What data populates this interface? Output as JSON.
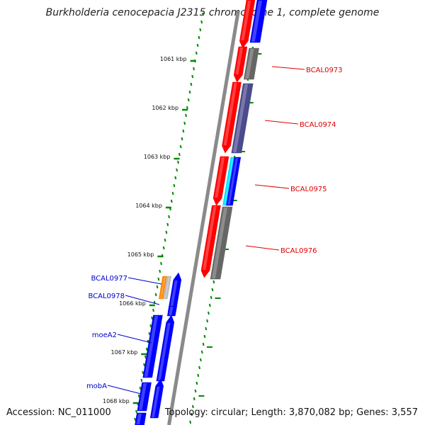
{
  "title": "Burkholderia cenocepacia J2315 chromosome 1, complete genome",
  "accession": "Accession: NC_011000",
  "summary": "Topology: circular; Length: 3,870,082 bp; Genes: 3,557",
  "ticks": [
    {
      "label": "1061 kbp",
      "kbp": 1061
    },
    {
      "label": "1062 kbp",
      "kbp": 1062
    },
    {
      "label": "1063 kbp",
      "kbp": 1063
    },
    {
      "label": "1064 kbp",
      "kbp": 1064
    },
    {
      "label": "1065 kbp",
      "kbp": 1065
    },
    {
      "label": "1066 kbp",
      "kbp": 1066
    },
    {
      "label": "1067 kbp",
      "kbp": 1067
    },
    {
      "label": "1068 kbp",
      "kbp": 1068
    }
  ],
  "gene_labels_right": [
    {
      "name": "BCAL0973",
      "color": "#dd0000"
    },
    {
      "name": "BCAL0974",
      "color": "#dd0000"
    },
    {
      "name": "BCAL0975",
      "color": "#dd0000"
    },
    {
      "name": "BCAL0976",
      "color": "#dd0000"
    }
  ],
  "gene_labels_left": [
    {
      "name": "BCAL0977",
      "color": "#0000cc"
    },
    {
      "name": "BCAL0978",
      "color": "#0000cc"
    },
    {
      "name": "moeA2",
      "color": "#0000cc"
    },
    {
      "name": "mobA",
      "color": "#0000cc"
    }
  ],
  "colors": {
    "reverse_strand": "#ff0000",
    "forward_strand": "#0000ff",
    "cds_gray": "#666666",
    "cds_purple": "#4a4a8c",
    "cds_cyan": "#00e5ff",
    "cds_orange": "#ff8800",
    "backbone": "#8a8a8a",
    "tick": "#008800"
  }
}
